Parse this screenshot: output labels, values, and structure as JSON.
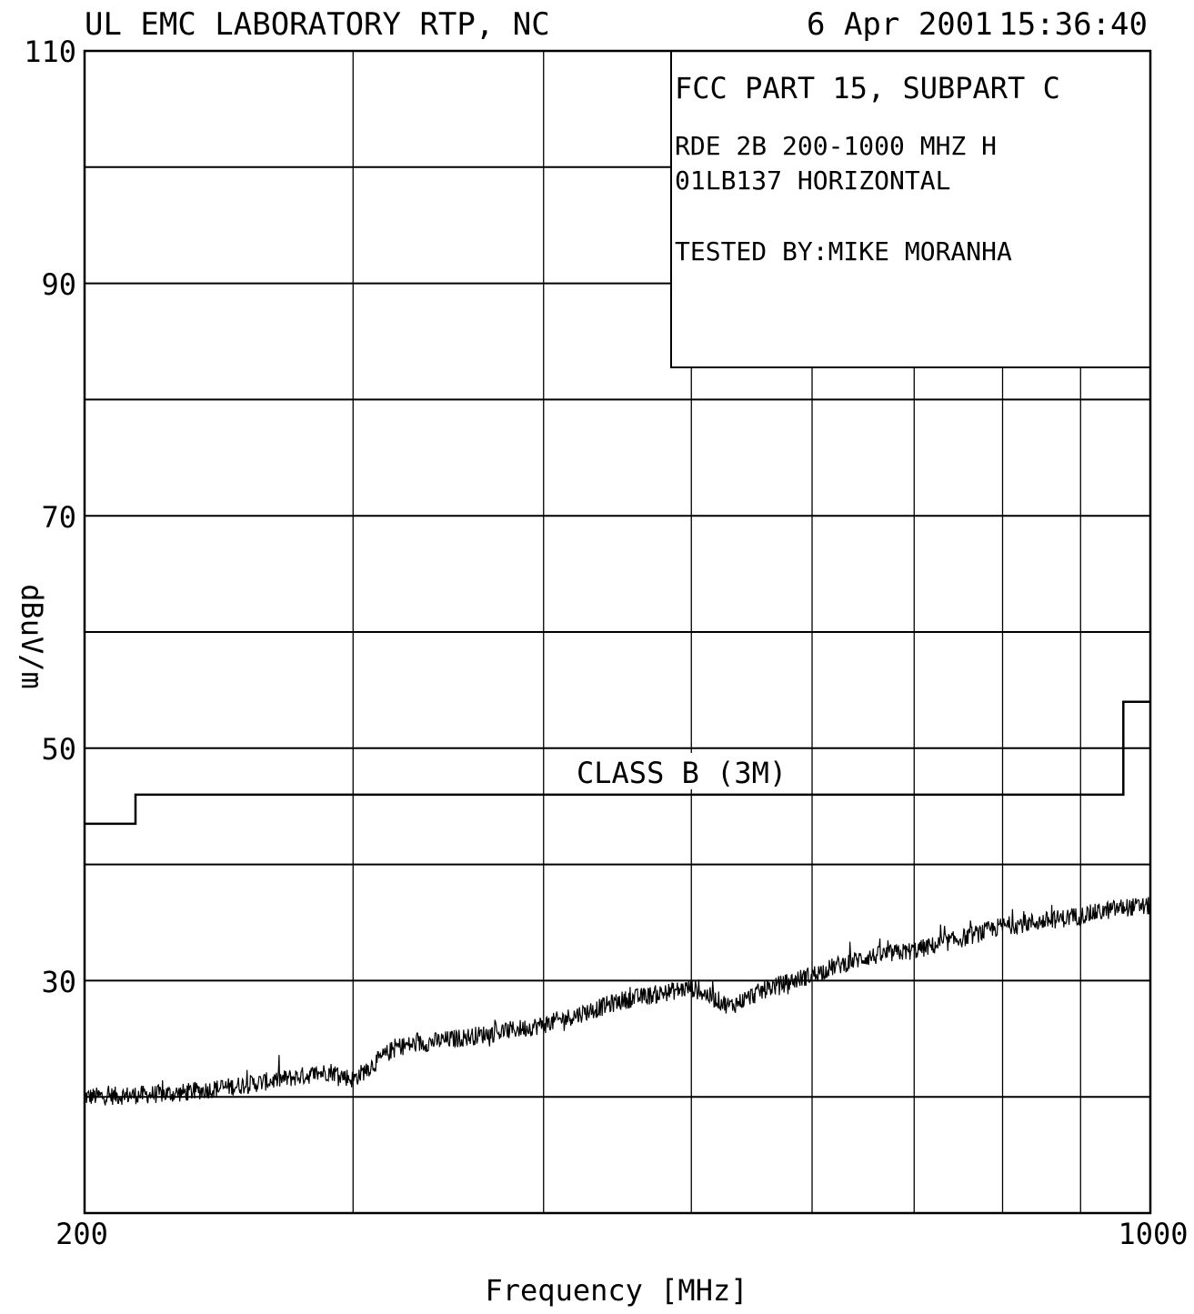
{
  "header": {
    "lab": "UL EMC LABORATORY RTP, NC",
    "date": "6 Apr 2001",
    "time": "15:36:40"
  },
  "info_box": {
    "line1": "FCC PART 15, SUBPART C",
    "line2": "RDE 2B 200-1000 MHZ H",
    "line3": "01LB137  HORIZONTAL",
    "line4": "TESTED BY:MIKE MORANHA"
  },
  "chart_data": {
    "type": "line",
    "xlabel": "Frequency [MHz]",
    "ylabel": "dBuV/m",
    "x_scale": "log",
    "xlim": [
      200,
      1000
    ],
    "ylim": [
      10,
      110
    ],
    "grid": true,
    "x_tick_labels": [
      "200",
      "1000"
    ],
    "y_tick_labels": [
      "30",
      "50",
      "70",
      "90",
      "110"
    ],
    "limit_label": "CLASS B (3M)",
    "series": [
      {
        "name": "CLASS B (3M)",
        "kind": "step-limit",
        "x": [
          200,
          216,
          216,
          960,
          960,
          1000
        ],
        "y": [
          43.5,
          43.5,
          46,
          46,
          54,
          54
        ]
      },
      {
        "kind": "measured",
        "x": [
          200,
          230,
          260,
          290,
          300,
          320,
          350,
          400,
          450,
          500,
          530,
          560,
          600,
          620,
          650,
          700,
          760,
          800,
          850,
          900,
          960,
          1000
        ],
        "y": [
          20,
          20.3,
          21.2,
          22.2,
          21.5,
          24.3,
          25,
          26.2,
          28.3,
          29.4,
          27.8,
          29.3,
          30.5,
          31.2,
          32,
          32.6,
          33.8,
          34.7,
          35.1,
          35.6,
          36.3,
          36.4
        ]
      }
    ]
  }
}
